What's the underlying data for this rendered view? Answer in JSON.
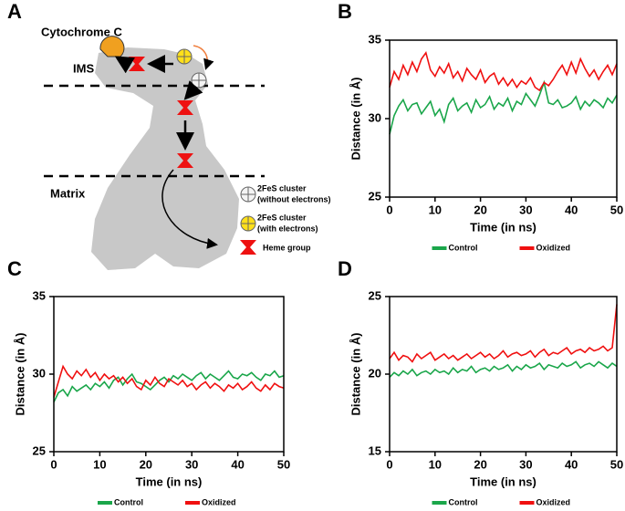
{
  "diagram": {
    "panel_label": "A",
    "cytochrome": "Cytochrome C",
    "ims": "IMS",
    "matrix": "Matrix",
    "legend": [
      {
        "title": "2FeS cluster",
        "note": "(without electrons)"
      },
      {
        "title": "2FeS cluster",
        "note": "(with electrons)"
      },
      {
        "title": "Heme group"
      }
    ]
  },
  "chart_data": [
    {
      "type": "line",
      "panel_label": "B",
      "x_label": "Time (in ns)",
      "y_label": "Distance (in Å)",
      "x": [
        0,
        1,
        2,
        3,
        4,
        5,
        6,
        7,
        8,
        9,
        10,
        11,
        12,
        13,
        14,
        15,
        16,
        17,
        18,
        19,
        20,
        21,
        22,
        23,
        24,
        25,
        26,
        27,
        28,
        29,
        30,
        31,
        32,
        33,
        34,
        35,
        36,
        37,
        38,
        39,
        40,
        41,
        42,
        43,
        44,
        45,
        46,
        47,
        48,
        49,
        50
      ],
      "xlim": [
        0,
        50
      ],
      "xticks": [
        0,
        10,
        20,
        30,
        40,
        50
      ],
      "ylim": [
        25,
        35
      ],
      "yticks": [
        25,
        30,
        35
      ],
      "legend": "bottom",
      "series": [
        {
          "name": "Control",
          "color": "#1aa64a",
          "values": [
            29.0,
            30.2,
            30.8,
            31.2,
            30.5,
            30.9,
            31.0,
            30.3,
            30.7,
            31.1,
            30.2,
            30.6,
            29.8,
            30.9,
            31.3,
            30.5,
            30.8,
            31.0,
            30.4,
            31.2,
            30.7,
            30.9,
            31.4,
            30.6,
            31.0,
            30.8,
            31.3,
            30.5,
            31.1,
            30.9,
            31.6,
            31.2,
            30.8,
            31.5,
            32.3,
            31.0,
            30.9,
            31.2,
            30.7,
            30.8,
            31.0,
            31.4,
            30.6,
            31.1,
            30.8,
            31.2,
            31.0,
            30.7,
            31.3,
            31.0,
            31.5
          ]
        },
        {
          "name": "Oxidized",
          "color": "#f01010",
          "values": [
            32.0,
            33.0,
            32.5,
            33.4,
            32.8,
            33.6,
            33.0,
            33.8,
            34.2,
            33.1,
            32.7,
            33.3,
            32.9,
            33.5,
            32.6,
            33.0,
            32.4,
            33.2,
            32.8,
            32.5,
            33.1,
            32.3,
            32.7,
            32.9,
            32.2,
            32.6,
            32.1,
            32.5,
            32.0,
            32.4,
            32.2,
            32.6,
            32.0,
            31.8,
            32.3,
            32.1,
            32.5,
            33.0,
            33.4,
            32.8,
            33.6,
            32.9,
            33.8,
            33.2,
            32.7,
            33.1,
            32.5,
            33.0,
            33.4,
            32.8,
            33.5
          ]
        }
      ]
    },
    {
      "type": "line",
      "panel_label": "C",
      "x_label": "Time (in ns)",
      "y_label": "Distance (in Å)",
      "x": [
        0,
        1,
        2,
        3,
        4,
        5,
        6,
        7,
        8,
        9,
        10,
        11,
        12,
        13,
        14,
        15,
        16,
        17,
        18,
        19,
        20,
        21,
        22,
        23,
        24,
        25,
        26,
        27,
        28,
        29,
        30,
        31,
        32,
        33,
        34,
        35,
        36,
        37,
        38,
        39,
        40,
        41,
        42,
        43,
        44,
        45,
        46,
        47,
        48,
        49,
        50
      ],
      "xlim": [
        0,
        50
      ],
      "xticks": [
        0,
        10,
        20,
        30,
        40,
        50
      ],
      "ylim": [
        25,
        35
      ],
      "yticks": [
        25,
        30,
        35
      ],
      "legend": "bottom",
      "series": [
        {
          "name": "Control",
          "color": "#1aa64a",
          "values": [
            28.2,
            28.8,
            29.0,
            28.6,
            29.2,
            28.9,
            29.1,
            29.3,
            29.0,
            29.4,
            29.2,
            29.5,
            29.1,
            29.6,
            29.8,
            29.3,
            29.7,
            30.0,
            29.5,
            29.4,
            29.2,
            29.0,
            29.3,
            29.6,
            29.8,
            29.5,
            29.9,
            29.7,
            30.0,
            29.8,
            29.6,
            29.9,
            30.1,
            29.7,
            30.0,
            29.8,
            29.6,
            29.9,
            30.2,
            29.8,
            29.7,
            30.0,
            29.9,
            30.1,
            29.8,
            29.6,
            30.0,
            29.9,
            30.2,
            29.8,
            29.9
          ]
        },
        {
          "name": "Oxidized",
          "color": "#f01010",
          "values": [
            28.5,
            29.5,
            30.5,
            30.0,
            29.7,
            30.2,
            29.9,
            30.3,
            29.8,
            30.1,
            29.6,
            30.0,
            29.7,
            29.9,
            29.5,
            29.8,
            29.4,
            29.7,
            29.2,
            29.0,
            29.6,
            29.3,
            29.8,
            29.4,
            29.2,
            29.7,
            29.5,
            29.3,
            29.6,
            29.2,
            29.4,
            29.0,
            29.3,
            29.5,
            29.1,
            29.4,
            29.2,
            28.9,
            29.3,
            29.1,
            29.4,
            29.0,
            29.2,
            29.5,
            29.1,
            28.9,
            29.3,
            29.0,
            29.4,
            29.2,
            29.1
          ]
        }
      ]
    },
    {
      "type": "line",
      "panel_label": "D",
      "x_label": "Time (in ns)",
      "y_label": "Distance (in Å)",
      "x": [
        0,
        1,
        2,
        3,
        4,
        5,
        6,
        7,
        8,
        9,
        10,
        11,
        12,
        13,
        14,
        15,
        16,
        17,
        18,
        19,
        20,
        21,
        22,
        23,
        24,
        25,
        26,
        27,
        28,
        29,
        30,
        31,
        32,
        33,
        34,
        35,
        36,
        37,
        38,
        39,
        40,
        41,
        42,
        43,
        44,
        45,
        46,
        47,
        48,
        49,
        50
      ],
      "xlim": [
        0,
        50
      ],
      "xticks": [
        0,
        10,
        20,
        30,
        40,
        50
      ],
      "ylim": [
        15,
        25
      ],
      "yticks": [
        15,
        20,
        25
      ],
      "legend": "bottom",
      "series": [
        {
          "name": "Control",
          "color": "#1aa64a",
          "values": [
            19.8,
            20.1,
            19.9,
            20.2,
            20.0,
            20.3,
            19.9,
            20.1,
            20.2,
            20.0,
            20.3,
            20.1,
            20.2,
            20.0,
            20.4,
            20.1,
            20.3,
            20.2,
            20.5,
            20.1,
            20.3,
            20.4,
            20.2,
            20.5,
            20.3,
            20.4,
            20.6,
            20.2,
            20.5,
            20.3,
            20.6,
            20.4,
            20.5,
            20.7,
            20.3,
            20.6,
            20.5,
            20.4,
            20.7,
            20.5,
            20.6,
            20.8,
            20.4,
            20.6,
            20.7,
            20.5,
            20.8,
            20.6,
            20.4,
            20.7,
            20.5
          ]
        },
        {
          "name": "Oxidized",
          "color": "#f01010",
          "values": [
            21.0,
            21.4,
            20.9,
            21.2,
            21.1,
            20.8,
            21.3,
            21.0,
            21.2,
            21.4,
            20.9,
            21.1,
            21.3,
            21.0,
            21.2,
            20.9,
            21.1,
            21.3,
            21.0,
            21.2,
            21.4,
            21.1,
            21.3,
            21.0,
            21.2,
            21.5,
            21.1,
            21.3,
            21.4,
            21.2,
            21.3,
            21.5,
            21.1,
            21.4,
            21.6,
            21.2,
            21.4,
            21.3,
            21.5,
            21.7,
            21.3,
            21.5,
            21.6,
            21.4,
            21.7,
            21.5,
            21.6,
            21.8,
            21.5,
            21.7,
            24.5
          ]
        }
      ]
    }
  ]
}
